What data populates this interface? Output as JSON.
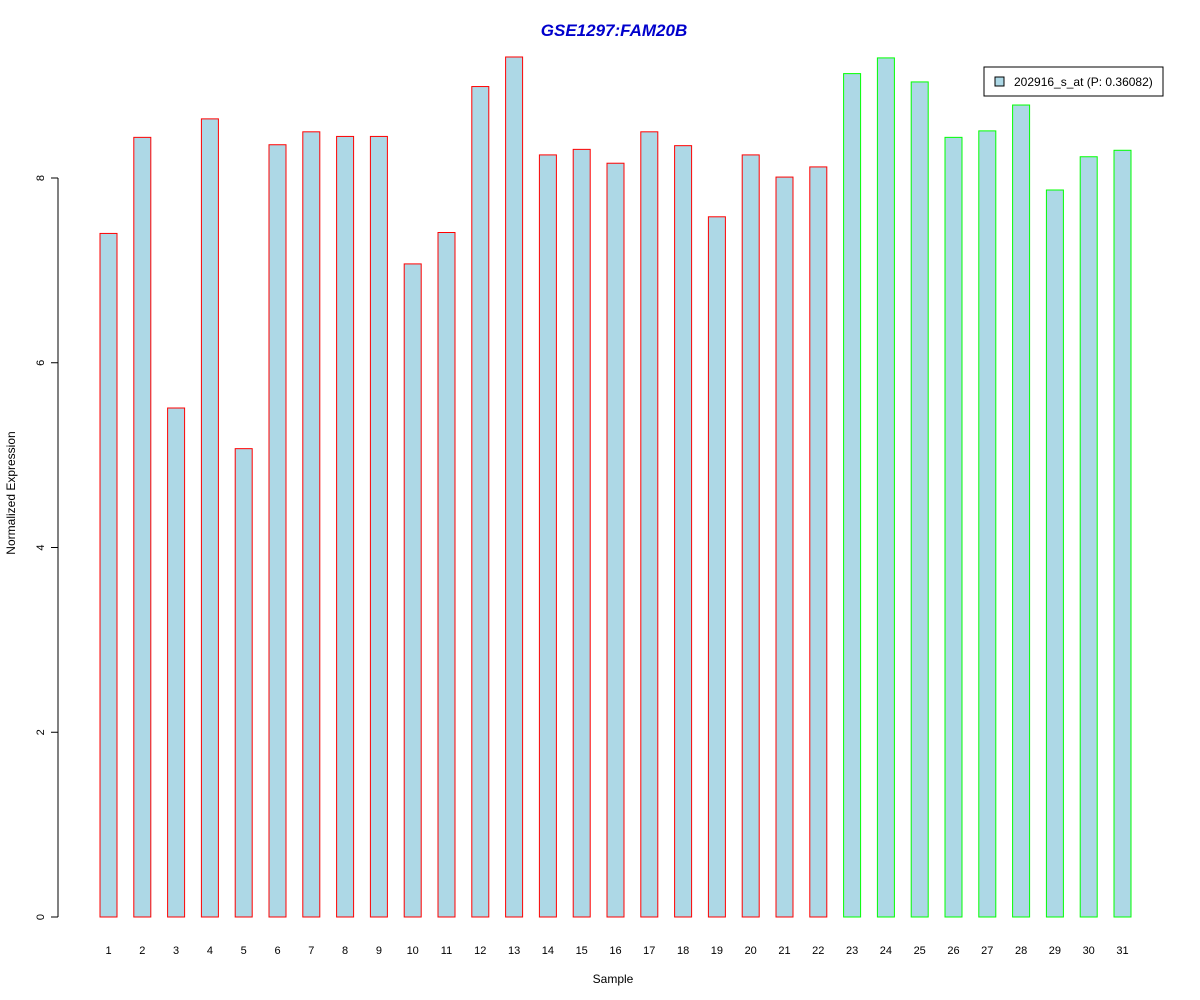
{
  "chart_data": {
    "type": "bar",
    "title": "GSE1297:FAM20B",
    "xlabel": "Sample",
    "ylabel": "Normalized Expression",
    "ylim": [
      0,
      9.3
    ],
    "yticks": [
      0,
      2,
      4,
      6,
      8
    ],
    "categories": [
      "1",
      "2",
      "3",
      "4",
      "5",
      "6",
      "7",
      "8",
      "9",
      "10",
      "11",
      "12",
      "13",
      "14",
      "15",
      "16",
      "17",
      "18",
      "19",
      "20",
      "21",
      "22",
      "23",
      "24",
      "25",
      "26",
      "27",
      "28",
      "29",
      "30",
      "31"
    ],
    "values": [
      7.4,
      8.44,
      5.51,
      8.64,
      5.07,
      8.36,
      8.5,
      8.45,
      8.45,
      7.07,
      7.41,
      8.99,
      9.31,
      8.25,
      8.31,
      8.16,
      8.5,
      8.35,
      7.58,
      8.25,
      8.01,
      8.12,
      9.13,
      9.3,
      9.04,
      8.44,
      8.51,
      8.79,
      7.87,
      8.23,
      8.3
    ],
    "group_of_bar": [
      "red",
      "red",
      "red",
      "red",
      "red",
      "red",
      "red",
      "red",
      "red",
      "red",
      "red",
      "red",
      "red",
      "red",
      "red",
      "red",
      "red",
      "red",
      "red",
      "red",
      "red",
      "red",
      "green",
      "green",
      "green",
      "green",
      "green",
      "green",
      "green",
      "green",
      "green"
    ],
    "legend": {
      "label": "202916_s_at (P: 0.36082)",
      "position": "top-right"
    },
    "grid": false
  },
  "colors": {
    "title": "#0000cc",
    "bar_fill": "#add8e6",
    "border_red": "#ff0000",
    "border_green": "#00ff00",
    "axis": "#000000"
  }
}
